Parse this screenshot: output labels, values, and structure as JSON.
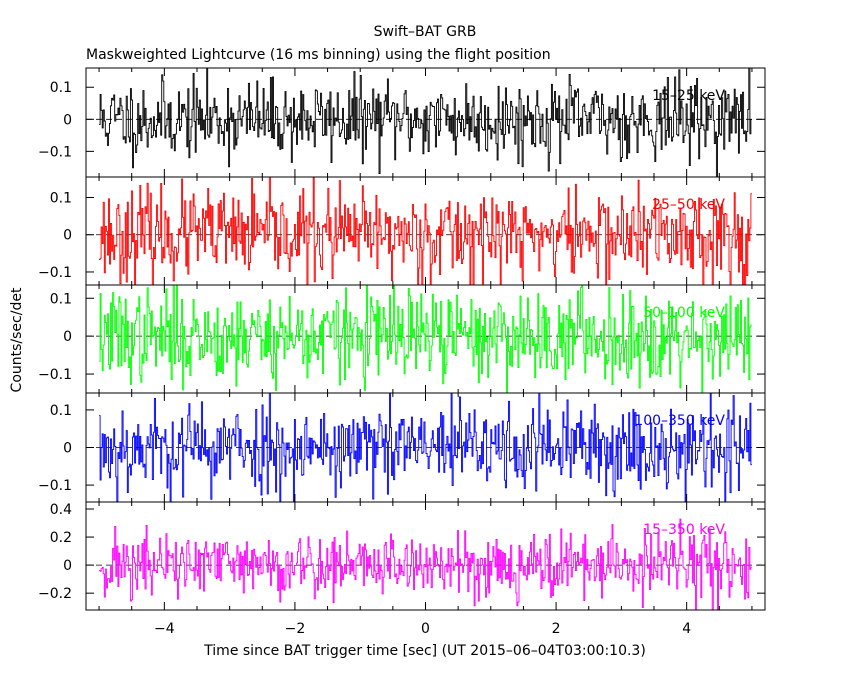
{
  "chart_data": {
    "type": "line",
    "title": "Swift–BAT GRB",
    "subtitle": "Maskweighted Lightcurve (16 ms binning) using the flight position",
    "xlabel": "Time since BAT trigger time [sec] (UT 2015–06–04T03:00:10.3)",
    "ylabel": "Counts/sec/det",
    "xlim": [
      -5.2,
      5.2
    ],
    "x_range_data": [
      -5.0,
      5.0
    ],
    "bin_width_sec": 0.016,
    "x_ticks": [
      -4,
      -2,
      0,
      2,
      4
    ],
    "x_tick_labels": [
      "−4",
      "−2",
      "0",
      "2",
      "4"
    ],
    "panels": [
      {
        "name": "15–25 keV",
        "label": "15–25 keV",
        "color": "#000000",
        "ylim": [
          -0.18,
          0.16
        ],
        "y_ticks": [
          0.1,
          0,
          -0.1
        ],
        "y_tick_labels": [
          "0.1",
          "0",
          "−0.1"
        ],
        "noise_amplitude": 0.06,
        "seed": 11
      },
      {
        "name": "25–50 keV",
        "label": "25–50 keV",
        "color": "#ff0000",
        "ylim": [
          -0.135,
          0.155
        ],
        "y_ticks": [
          0.1,
          0,
          -0.1
        ],
        "y_tick_labels": [
          "0.1",
          "0",
          "−0.1"
        ],
        "noise_amplitude": 0.06,
        "seed": 23
      },
      {
        "name": "50–100 keV",
        "label": "50–100 keV",
        "color": "#00ff00",
        "ylim": [
          -0.15,
          0.135
        ],
        "y_ticks": [
          0.1,
          0,
          -0.1
        ],
        "y_tick_labels": [
          "0.1",
          "0",
          "−0.1"
        ],
        "noise_amplitude": 0.06,
        "seed": 37
      },
      {
        "name": "100–350 keV",
        "label": "100–350 keV",
        "color": "#0000ff",
        "ylim": [
          -0.145,
          0.145
        ],
        "y_ticks": [
          0.1,
          0,
          -0.1
        ],
        "y_tick_labels": [
          "0.1",
          "0",
          "−0.1"
        ],
        "noise_amplitude": 0.06,
        "seed": 53
      },
      {
        "name": "15–350 keV",
        "label": "15–350 keV",
        "color": "#ff00ff",
        "ylim": [
          -0.32,
          0.45
        ],
        "y_ticks": [
          0.4,
          0.2,
          0,
          -0.2
        ],
        "y_tick_labels": [
          "0.4",
          "0.2",
          "0",
          "−0.2"
        ],
        "noise_amplitude": 0.12,
        "seed": 71
      }
    ]
  }
}
